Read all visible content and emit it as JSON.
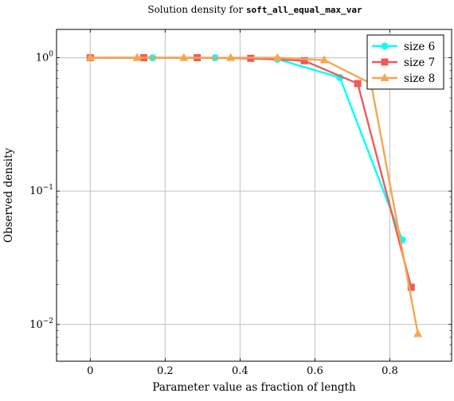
{
  "chart_data": {
    "type": "line",
    "title_prefix": "Solution density for ",
    "title_code": "soft_all_equal_max_var",
    "xlabel": "Parameter value as fraction of length",
    "ylabel": "Observed density",
    "x_ticks": [
      "0",
      "0.2",
      "0.4",
      "0.6",
      "0.8"
    ],
    "x_tick_values": [
      0,
      0.2,
      0.4,
      0.6,
      0.8
    ],
    "y_ticks": [
      {
        "base": "10",
        "exp": "0",
        "value": 1
      },
      {
        "base": "10",
        "exp": "−1",
        "value": 0.1
      },
      {
        "base": "10",
        "exp": "−2",
        "value": 0.01
      }
    ],
    "xlim": [
      -0.09,
      0.965
    ],
    "ylim": [
      0.0053,
      1.63
    ],
    "y_scale": "log",
    "grid": true,
    "legend_position": "top-right",
    "series": [
      {
        "name": "size 6",
        "color": "#00ffff",
        "marker": "circle",
        "x": [
          0,
          0.1667,
          0.3333,
          0.5,
          0.6667,
          0.8333
        ],
        "y": [
          1.0,
          1.0,
          1.0,
          0.975,
          0.71,
          0.043
        ]
      },
      {
        "name": "size 7",
        "color": "#f05a5a",
        "marker": "square",
        "x": [
          0,
          0.1429,
          0.2857,
          0.4286,
          0.5714,
          0.7143,
          0.8571
        ],
        "y": [
          1.0,
          1.0,
          1.0,
          0.99,
          0.95,
          0.64,
          0.019
        ]
      },
      {
        "name": "size 8",
        "color": "#f7a64d",
        "marker": "triangle",
        "x": [
          0,
          0.125,
          0.25,
          0.375,
          0.5,
          0.625,
          0.75,
          0.875
        ],
        "y": [
          1.0,
          1.0,
          1.0,
          1.0,
          1.0,
          0.96,
          0.64,
          0.0085
        ]
      }
    ]
  }
}
